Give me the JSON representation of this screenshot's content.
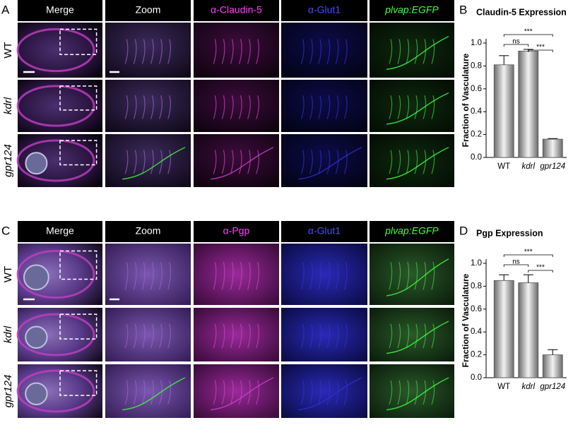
{
  "panels": [
    {
      "letter": "A",
      "columns": [
        "Merge",
        "Zoom",
        "α-Claudin-5",
        "α-Glut1",
        "plvap:EGFP"
      ],
      "rows": [
        "WT",
        "kdrl",
        "gpr124"
      ]
    },
    {
      "letter": "C",
      "columns": [
        "Merge",
        "Zoom",
        "α-Pgp",
        "α-Glut1",
        "plvap:EGFP"
      ],
      "rows": [
        "WT",
        "kdrl",
        "gpr124"
      ]
    }
  ],
  "chart_data": [
    {
      "letter": "B",
      "type": "bar",
      "title": "Claudin-5 Expression",
      "y_label": "Fraction of Vasculature",
      "categories": [
        "WT",
        "kdrl",
        "gpr124"
      ],
      "values": [
        0.81,
        0.93,
        0.16
      ],
      "errors": [
        0.08,
        0.015,
        0.005
      ],
      "significance": [
        "***",
        "ns",
        "***"
      ],
      "color": "#a8a8a8",
      "ylim": [
        0,
        1
      ],
      "yticks": [
        {
          "value": 0,
          "label": "0.0"
        },
        0.2,
        0.4,
        0.6,
        0.8,
        {
          "value": 1,
          "label": "1.0"
        }
      ]
    },
    {
      "letter": "D",
      "type": "bar",
      "title": "Pgp Expression",
      "y_label": "Fraction of Vasculature",
      "categories": [
        "WT",
        "kdrl",
        "gpr124"
      ],
      "values": [
        0.85,
        0.83,
        0.2
      ],
      "errors": [
        0.05,
        0.07,
        0.045
      ],
      "significance": [
        "***",
        "ns",
        "***"
      ],
      "color": "#a8a8a8",
      "ylim": [
        0,
        1
      ],
      "yticks": [
        {
          "value": 0,
          "label": "0.0"
        },
        0.2,
        0.4,
        0.6,
        0.8,
        {
          "value": 1,
          "label": "1.0"
        }
      ]
    }
  ]
}
